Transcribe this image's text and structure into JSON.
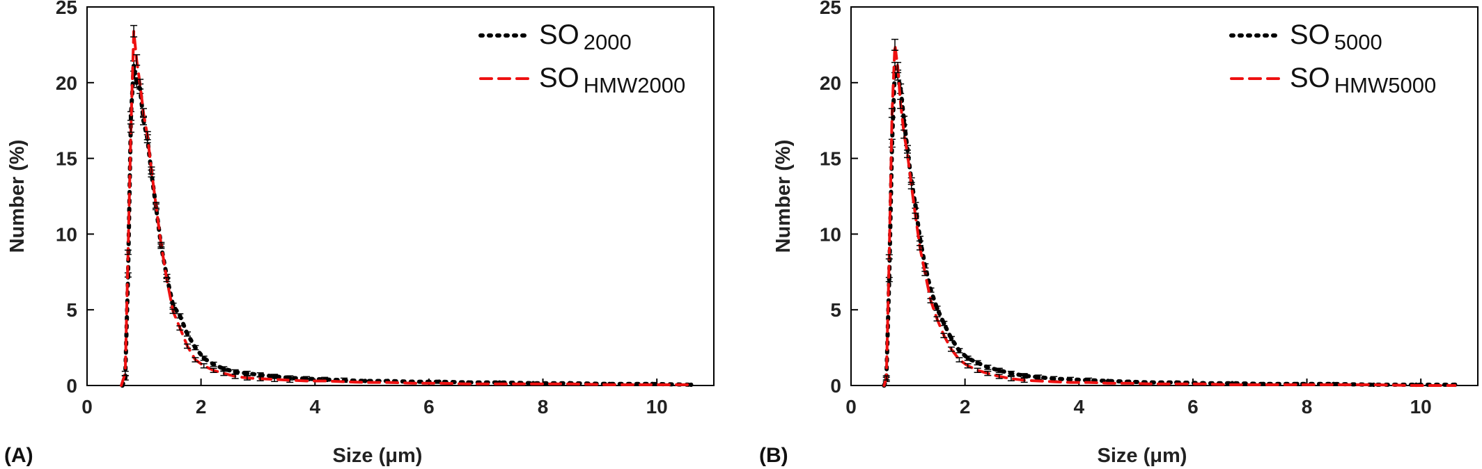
{
  "chart_data": [
    {
      "panel_label": "(A)",
      "type": "line",
      "xlabel": "Size (μm)",
      "ylabel": "Number (%)",
      "xlim": [
        0,
        11
      ],
      "ylim": [
        0,
        25
      ],
      "xticks": [
        "0",
        "2",
        "4",
        "6",
        "8",
        "10"
      ],
      "yticks": [
        "0",
        "5",
        "10",
        "15",
        "20",
        "25"
      ],
      "grid": false,
      "legend_position": "top-right",
      "series": [
        {
          "name": "SO 2000",
          "legend_main": "SO",
          "legend_sub": "2000",
          "color": "#000000",
          "style": "dotted",
          "x": [
            0.62,
            0.67,
            0.72,
            0.77,
            0.82,
            0.87,
            0.93,
            0.99,
            1.06,
            1.13,
            1.21,
            1.3,
            1.4,
            1.51,
            1.63,
            1.76,
            1.9,
            2.05,
            2.22,
            2.4,
            2.6,
            2.81,
            3.04,
            3.29,
            3.56,
            3.85,
            4.17,
            4.51,
            4.88,
            5.28,
            5.71,
            6.18,
            6.69,
            7.24,
            7.83,
            8.47,
            9.17,
            9.92,
            10.6
          ],
          "y": [
            0.0,
            0.5,
            7.3,
            17.8,
            21.1,
            20.0,
            19.6,
            17.5,
            16.3,
            14.0,
            11.8,
            9.2,
            7.2,
            5.3,
            4.6,
            3.4,
            2.5,
            1.8,
            1.4,
            1.1,
            0.9,
            0.8,
            0.7,
            0.6,
            0.5,
            0.45,
            0.4,
            0.35,
            0.3,
            0.3,
            0.25,
            0.25,
            0.2,
            0.2,
            0.15,
            0.15,
            0.1,
            0.1,
            0.05
          ]
        },
        {
          "name": "SO HMW2000",
          "legend_main": "SO",
          "legend_sub": "HMW2000",
          "color": "#ee1111",
          "style": "dashed",
          "x": [
            0.6,
            0.67,
            0.72,
            0.77,
            0.82,
            0.87,
            0.93,
            0.99,
            1.06,
            1.13,
            1.21,
            1.3,
            1.4,
            1.51,
            1.63,
            1.76,
            1.9,
            2.05,
            2.22,
            2.4,
            2.6,
            2.81,
            3.04,
            3.29,
            3.56,
            3.85,
            4.17,
            4.51,
            4.88,
            5.28,
            5.71,
            6.18,
            6.69,
            7.24,
            7.83,
            8.47,
            9.17,
            9.92,
            10.6
          ],
          "y": [
            0.0,
            0.8,
            8.8,
            17.0,
            23.4,
            21.5,
            19.9,
            18.0,
            16.5,
            14.2,
            11.9,
            9.3,
            7.0,
            4.9,
            3.8,
            2.6,
            1.7,
            1.3,
            1.0,
            0.8,
            0.6,
            0.5,
            0.45,
            0.4,
            0.35,
            0.3,
            0.3,
            0.25,
            0.2,
            0.2,
            0.15,
            0.15,
            0.1,
            0.1,
            0.1,
            0.1,
            0.05,
            0.05,
            0.05
          ]
        }
      ]
    },
    {
      "panel_label": "(B)",
      "type": "line",
      "xlabel": "Size (μm)",
      "ylabel": "Number (%)",
      "xlim": [
        0,
        11
      ],
      "ylim": [
        0,
        25
      ],
      "xticks": [
        "0",
        "2",
        "4",
        "6",
        "8",
        "10"
      ],
      "yticks": [
        "0",
        "5",
        "10",
        "15",
        "20",
        "25"
      ],
      "grid": false,
      "legend_position": "top-right",
      "series": [
        {
          "name": "SO 5000",
          "legend_main": "SO",
          "legend_sub": "5000",
          "color": "#000000",
          "style": "dotted",
          "x": [
            0.58,
            0.62,
            0.67,
            0.72,
            0.77,
            0.82,
            0.87,
            0.93,
            0.99,
            1.06,
            1.13,
            1.21,
            1.3,
            1.4,
            1.51,
            1.63,
            1.76,
            1.9,
            2.05,
            2.22,
            2.4,
            2.6,
            2.81,
            3.04,
            3.29,
            3.56,
            3.85,
            4.17,
            4.51,
            4.88,
            5.28,
            5.71,
            6.18,
            6.69,
            7.24,
            7.83,
            8.47,
            9.17,
            9.92,
            10.6
          ],
          "y": [
            0.0,
            0.4,
            7.0,
            16.0,
            21.0,
            20.5,
            19.6,
            17.5,
            15.6,
            13.5,
            11.9,
            9.7,
            7.9,
            6.3,
            5.1,
            4.1,
            3.1,
            2.3,
            1.8,
            1.5,
            1.2,
            1.0,
            0.8,
            0.65,
            0.55,
            0.45,
            0.4,
            0.35,
            0.3,
            0.25,
            0.2,
            0.2,
            0.15,
            0.15,
            0.1,
            0.1,
            0.1,
            0.05,
            0.05,
            0.05
          ]
        },
        {
          "name": "SO HMW5000",
          "legend_main": "SO",
          "legend_sub": "HMW5000",
          "color": "#ee1111",
          "style": "dashed",
          "x": [
            0.58,
            0.62,
            0.67,
            0.72,
            0.77,
            0.82,
            0.87,
            0.93,
            0.99,
            1.06,
            1.13,
            1.21,
            1.3,
            1.4,
            1.51,
            1.63,
            1.76,
            1.9,
            2.05,
            2.22,
            2.4,
            2.6,
            2.81,
            3.04,
            3.29,
            3.56,
            3.85,
            4.17,
            4.51,
            4.88,
            5.28,
            5.71,
            6.18,
            6.69,
            7.24,
            7.83,
            8.47,
            9.17,
            9.92,
            10.6
          ],
          "y": [
            0.0,
            0.5,
            8.5,
            18.0,
            22.5,
            21.0,
            18.6,
            16.6,
            15.3,
            13.2,
            11.2,
            9.1,
            7.4,
            5.6,
            4.4,
            3.3,
            2.4,
            1.7,
            1.3,
            1.0,
            0.8,
            0.6,
            0.45,
            0.35,
            0.3,
            0.25,
            0.2,
            0.2,
            0.15,
            0.15,
            0.1,
            0.1,
            0.1,
            0.05,
            0.05,
            0.05,
            0.05,
            0.05,
            0.0,
            0.0
          ]
        }
      ]
    }
  ]
}
